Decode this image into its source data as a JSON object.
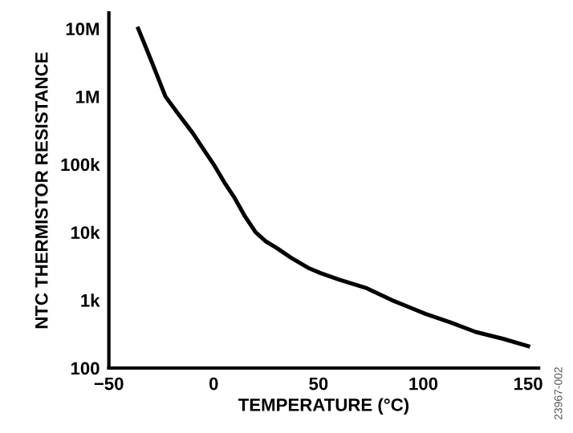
{
  "chart_data": {
    "type": "line",
    "xlabel": "TEMPERATURE (°C)",
    "ylabel": "NTC THERMISTOR RESISTANCE",
    "annotations": [
      "23967-002"
    ],
    "x": [
      -36,
      -30,
      -23,
      -17,
      -10,
      -5,
      0,
      5,
      10,
      15,
      20,
      25,
      30,
      37,
      45,
      51,
      60,
      73,
      85,
      101,
      113,
      125,
      138,
      150
    ],
    "series": [
      {
        "color": "#000000",
        "values": [
          10000000,
          3500000,
          1000000,
          560000,
          290000,
          170000,
          100000,
          55000,
          32000,
          17000,
          10000,
          7300,
          5900,
          4200,
          3000,
          2500,
          2000,
          1500,
          1000,
          630,
          470,
          340,
          270,
          210
        ]
      }
    ],
    "xlim": [
      -50,
      155
    ],
    "ylim": [
      100,
      17000000
    ],
    "log": "y",
    "xticks": [
      {
        "value": -50,
        "label": "−50"
      },
      0,
      50,
      100,
      150
    ],
    "yticks": [
      {
        "value": 100,
        "label": "100"
      },
      {
        "value": 1000,
        "label": "1k"
      },
      {
        "value": 10000,
        "label": "10k"
      },
      {
        "value": 100000,
        "label": "100k"
      },
      {
        "value": 1000000,
        "label": "1M"
      },
      {
        "value": 10000000,
        "label": "10M"
      }
    ],
    "grid": false,
    "marker": "none",
    "line_style": "solid"
  }
}
